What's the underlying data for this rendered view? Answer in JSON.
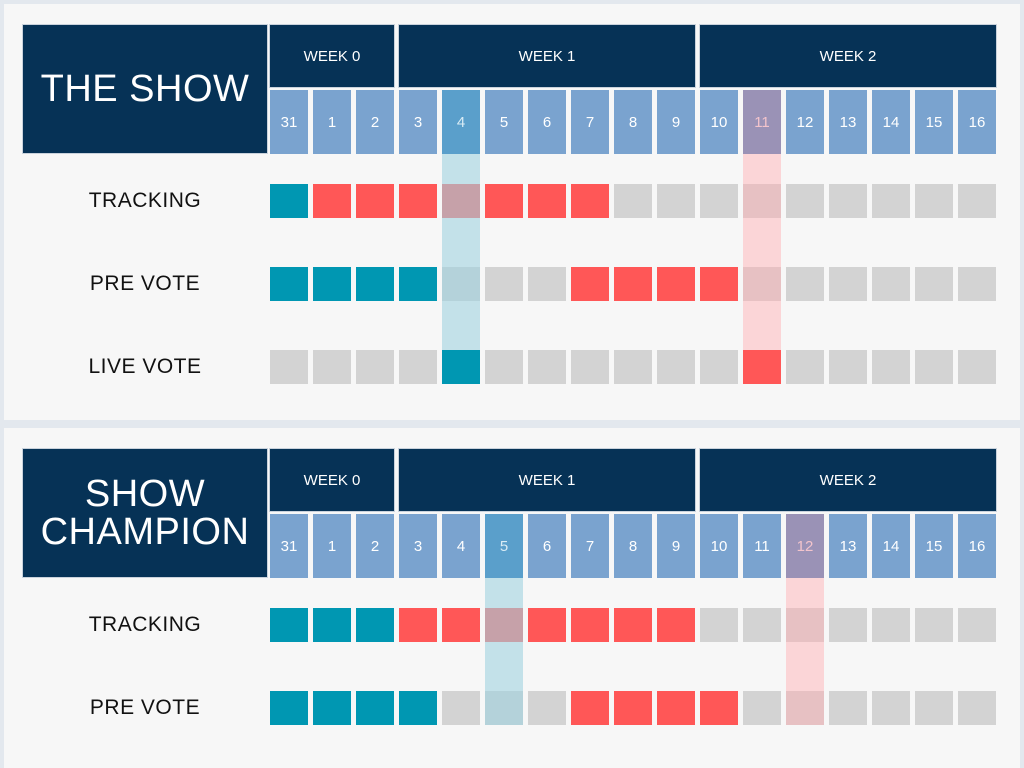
{
  "colors": {
    "navy": "#063256",
    "day_blue": "#7aa3cf",
    "teal": "#0097b2",
    "red": "#ff5757",
    "gray": "#d3d3d3",
    "background": "#f7f7f7"
  },
  "panels": [
    {
      "title": "THE SHOW",
      "weeks": [
        "WEEK 0",
        "WEEK 1",
        "WEEK 2"
      ],
      "days": [
        "31",
        "1",
        "2",
        "3",
        "4",
        "5",
        "6",
        "7",
        "8",
        "9",
        "10",
        "11",
        "12",
        "13",
        "14",
        "15",
        "16"
      ],
      "highlight_teal_day_index": 4,
      "highlight_red_day_index": 11,
      "rows": [
        {
          "label": "TRACKING",
          "cells": [
            "teal",
            "red",
            "red",
            "red",
            "red",
            "red",
            "red",
            "red",
            "gray",
            "gray",
            "gray",
            "gray",
            "gray",
            "gray",
            "gray",
            "gray",
            "gray"
          ]
        },
        {
          "label": "PRE VOTE",
          "cells": [
            "teal",
            "teal",
            "teal",
            "teal",
            "gray",
            "gray",
            "gray",
            "red",
            "red",
            "red",
            "red",
            "gray",
            "gray",
            "gray",
            "gray",
            "gray",
            "gray"
          ]
        },
        {
          "label": "LIVE VOTE",
          "cells": [
            "gray",
            "gray",
            "gray",
            "gray",
            "teal",
            "gray",
            "gray",
            "gray",
            "gray",
            "gray",
            "gray",
            "red",
            "gray",
            "gray",
            "gray",
            "gray",
            "gray"
          ]
        }
      ]
    },
    {
      "title": "SHOW\nCHAMPION",
      "weeks": [
        "WEEK 0",
        "WEEK 1",
        "WEEK 2"
      ],
      "days": [
        "31",
        "1",
        "2",
        "3",
        "4",
        "5",
        "6",
        "7",
        "8",
        "9",
        "10",
        "11",
        "12",
        "13",
        "14",
        "15",
        "16"
      ],
      "highlight_teal_day_index": 5,
      "highlight_red_day_index": 12,
      "rows": [
        {
          "label": "TRACKING",
          "cells": [
            "teal",
            "teal",
            "teal",
            "red",
            "red",
            "red",
            "red",
            "red",
            "red",
            "red",
            "gray",
            "gray",
            "gray",
            "gray",
            "gray",
            "gray",
            "gray"
          ]
        },
        {
          "label": "PRE VOTE",
          "cells": [
            "teal",
            "teal",
            "teal",
            "teal",
            "gray",
            "gray",
            "gray",
            "red",
            "red",
            "red",
            "red",
            "gray",
            "gray",
            "gray",
            "gray",
            "gray",
            "gray"
          ]
        }
      ]
    }
  ]
}
